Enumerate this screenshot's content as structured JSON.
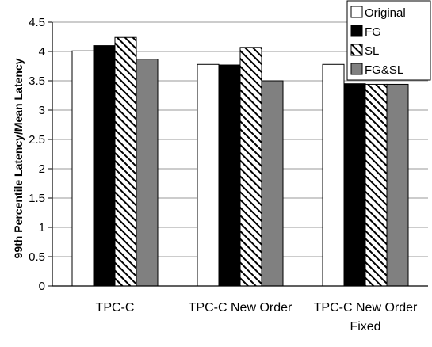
{
  "chart_data": {
    "type": "bar",
    "title": "",
    "xlabel": "",
    "ylabel": "99th Percentile  Latency/Mean Latency",
    "ylim": [
      0,
      4.5
    ],
    "yticks": [
      "0",
      "0.5",
      "1",
      "1.5",
      "2",
      "2.5",
      "3",
      "3.5",
      "4",
      "4.5"
    ],
    "grid": "horizontal",
    "legend_position": "top-right",
    "categories": [
      {
        "lines": [
          "TPC-C"
        ]
      },
      {
        "lines": [
          "TPC-C New Order"
        ]
      },
      {
        "lines": [
          "TPC-C New Order",
          "Fixed"
        ]
      }
    ],
    "series": [
      {
        "name": "Original",
        "fill": "white",
        "values": [
          4.01,
          3.78,
          3.78
        ]
      },
      {
        "name": "FG",
        "fill": "black",
        "values": [
          4.1,
          3.77,
          3.45
        ]
      },
      {
        "name": "SL",
        "fill": "hatch",
        "values": [
          4.24,
          4.07,
          3.44
        ]
      },
      {
        "name": "FG&SL",
        "fill": "gray",
        "values": [
          3.87,
          3.5,
          3.44
        ]
      }
    ],
    "colors": {
      "white": "#ffffff",
      "black": "#000000",
      "gray": "#808080",
      "grid": "#9a9a9a"
    }
  }
}
